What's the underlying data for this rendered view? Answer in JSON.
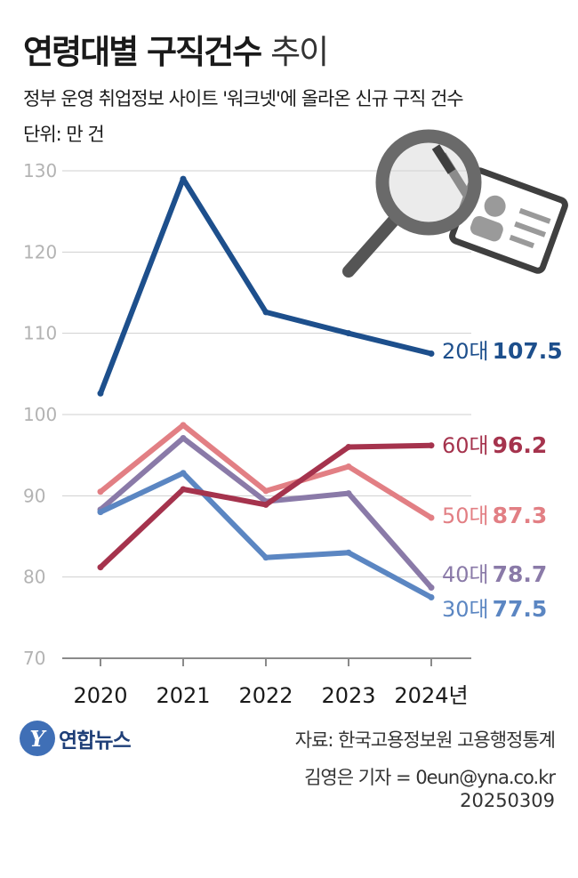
{
  "header": {
    "title_bold": "연령대별 구직건수",
    "title_light": "추이",
    "subtitle": "정부 운영 취업정보 사이트 '워크넷'에 올라온 신규 구직 건수",
    "unit": "단위: 만 건"
  },
  "chart_data": {
    "type": "line",
    "categories": [
      "2020",
      "2021",
      "2022",
      "2023",
      "2024년"
    ],
    "ylim": [
      70,
      130
    ],
    "yticks": [
      70,
      80,
      90,
      100,
      110,
      120,
      130
    ],
    "grid": true,
    "series": [
      {
        "name": "20대",
        "end_label": "107.5",
        "color": "#1d4f8c",
        "values": [
          102.6,
          129.0,
          112.6,
          110.0,
          107.5
        ]
      },
      {
        "name": "60대",
        "end_label": "96.2",
        "color": "#a5334d",
        "values": [
          81.2,
          90.8,
          88.9,
          96.0,
          96.2
        ]
      },
      {
        "name": "50대",
        "end_label": "87.3",
        "color": "#e27f84",
        "values": [
          90.5,
          98.7,
          90.6,
          93.6,
          87.3
        ]
      },
      {
        "name": "40대",
        "end_label": "78.7",
        "color": "#8a7aa8",
        "values": [
          88.3,
          97.1,
          89.3,
          90.3,
          78.7
        ]
      },
      {
        "name": "30대",
        "end_label": "77.5",
        "color": "#5b86c2",
        "values": [
          88.0,
          92.8,
          82.4,
          83.0,
          77.5
        ]
      }
    ]
  },
  "icon": "magnifier-id-card-icon",
  "footer": {
    "logo_text": "연합뉴스",
    "source": "자료: 한국고용정보원 고용행정통계",
    "reporter": "김영은 기자 = 0eun@yna.co.kr",
    "date": "20250309"
  }
}
